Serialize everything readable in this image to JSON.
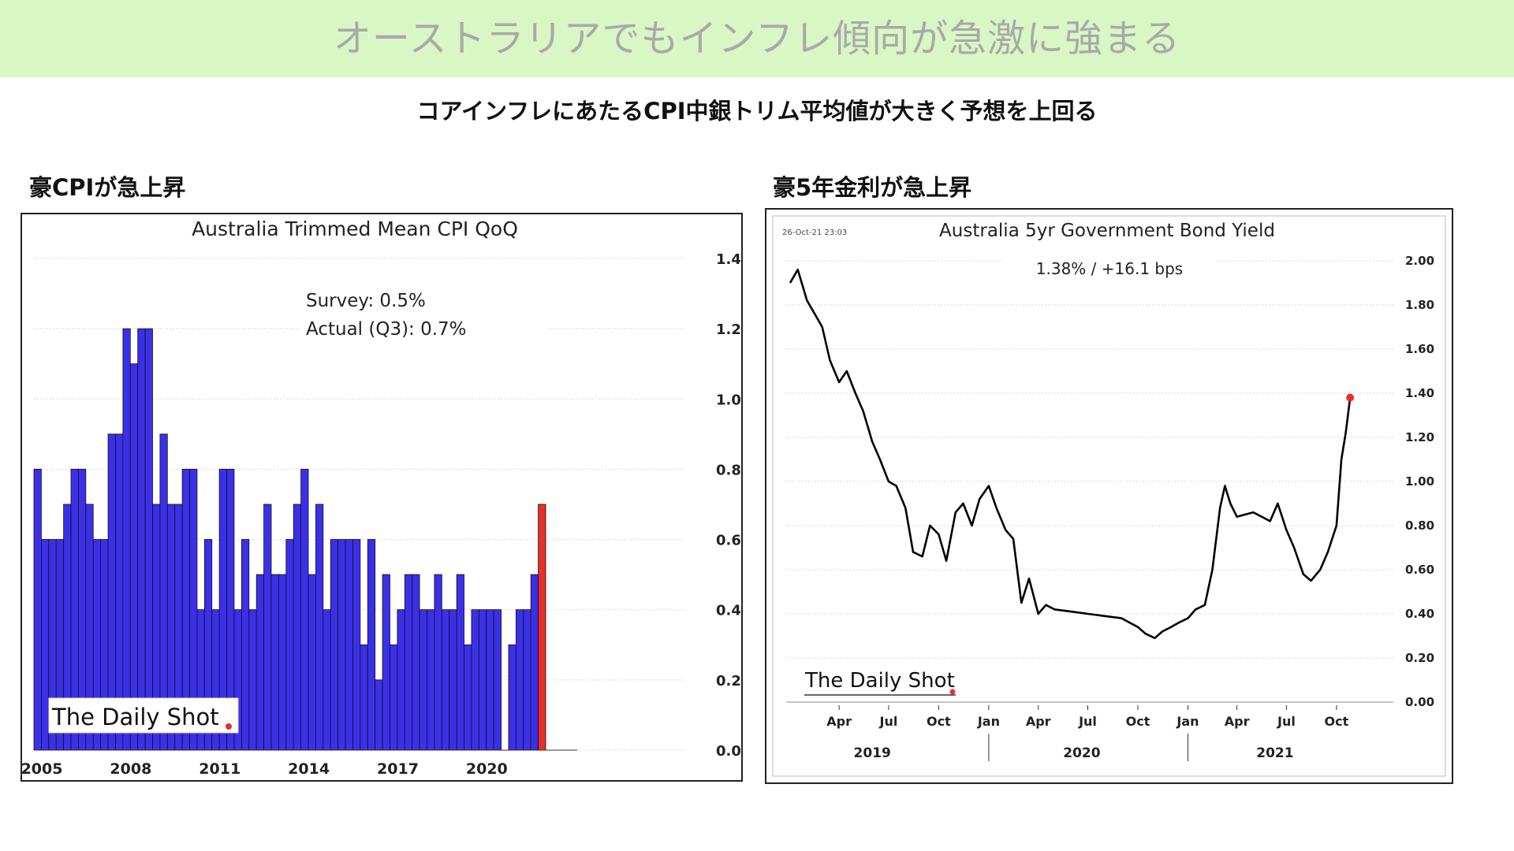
{
  "header": {
    "banner_title": "オーストラリアでもインフレ傾向が急激に強まる",
    "subtitle": "コアインフレにあたるCPI中銀トリム平均値が大きく予想を上回る"
  },
  "left_panel": {
    "label": "豪CPIが急上昇"
  },
  "right_panel": {
    "label": "豪5年金利が急上昇"
  },
  "colors": {
    "banner_bg": "#d9f7c4",
    "bar_fill": "#3b30e8",
    "bar_highlight": "#e8302a",
    "line": "#000000",
    "dot": "#e8302a"
  },
  "chart_data": [
    {
      "type": "bar",
      "title": "Australia Trimmed Mean CPI QoQ",
      "annotations": [
        "Survey:  0.5%",
        "Actual (Q3):  0.7%"
      ],
      "watermark": "The Daily Shot",
      "ylim": [
        0,
        1.4
      ],
      "y_ticks": [
        "1.4",
        "1.2",
        "1.0",
        "0.8",
        "0.6",
        "0.4",
        "0.2",
        "0.0"
      ],
      "x_ticks": [
        "2005",
        "2008",
        "2011",
        "2014",
        "2017",
        "2020"
      ],
      "grid": true,
      "values": [
        0.8,
        0.6,
        0.6,
        0.6,
        0.7,
        0.8,
        0.8,
        0.7,
        0.6,
        0.6,
        0.9,
        0.9,
        1.2,
        1.1,
        1.2,
        1.2,
        0.7,
        0.9,
        0.7,
        0.7,
        0.8,
        0.8,
        0.4,
        0.6,
        0.4,
        0.8,
        0.8,
        0.4,
        0.6,
        0.4,
        0.5,
        0.7,
        0.5,
        0.5,
        0.6,
        0.7,
        0.8,
        0.5,
        0.7,
        0.4,
        0.6,
        0.6,
        0.6,
        0.6,
        0.3,
        0.6,
        0.2,
        0.5,
        0.3,
        0.4,
        0.5,
        0.5,
        0.4,
        0.4,
        0.5,
        0.4,
        0.4,
        0.5,
        0.3,
        0.4,
        0.4,
        0.4,
        0.4,
        0.0,
        0.3,
        0.4,
        0.4,
        0.5,
        0.7
      ],
      "highlight_last": true
    },
    {
      "type": "line",
      "title": "Australia 5yr Government Bond Yield",
      "timestamp": "26-Oct-21 23:03",
      "annotation": "1.38%  /  +16.1 bps",
      "watermark": "The Daily Shot",
      "ylim": [
        0,
        2.0
      ],
      "y_ticks": [
        "2.00",
        "1.80",
        "1.60",
        "1.40",
        "1.20",
        "1.00",
        "0.80",
        "0.60",
        "0.40",
        "0.20",
        "0.00"
      ],
      "x_ticks": [
        "Apr",
        "Jul",
        "Oct",
        "Jan",
        "Apr",
        "Jul",
        "Oct",
        "Jan",
        "Apr",
        "Jul",
        "Oct"
      ],
      "x_years": [
        "2019",
        "2020",
        "2021"
      ],
      "grid": true,
      "series_points": [
        [
          "2019-01-01",
          1.9
        ],
        [
          "2019-01-15",
          1.96
        ],
        [
          "2019-02-01",
          1.82
        ],
        [
          "2019-02-15",
          1.76
        ],
        [
          "2019-03-01",
          1.7
        ],
        [
          "2019-03-15",
          1.55
        ],
        [
          "2019-04-01",
          1.45
        ],
        [
          "2019-04-15",
          1.5
        ],
        [
          "2019-05-01",
          1.4
        ],
        [
          "2019-05-15",
          1.32
        ],
        [
          "2019-06-01",
          1.18
        ],
        [
          "2019-06-15",
          1.1
        ],
        [
          "2019-07-01",
          1.0
        ],
        [
          "2019-07-15",
          0.98
        ],
        [
          "2019-08-01",
          0.88
        ],
        [
          "2019-08-15",
          0.68
        ],
        [
          "2019-09-01",
          0.66
        ],
        [
          "2019-09-15",
          0.8
        ],
        [
          "2019-10-01",
          0.76
        ],
        [
          "2019-10-15",
          0.64
        ],
        [
          "2019-11-01",
          0.86
        ],
        [
          "2019-11-15",
          0.9
        ],
        [
          "2019-12-01",
          0.8
        ],
        [
          "2019-12-15",
          0.92
        ],
        [
          "2020-01-01",
          0.98
        ],
        [
          "2020-01-15",
          0.88
        ],
        [
          "2020-02-01",
          0.78
        ],
        [
          "2020-02-15",
          0.74
        ],
        [
          "2020-03-01",
          0.45
        ],
        [
          "2020-03-15",
          0.56
        ],
        [
          "2020-04-01",
          0.4
        ],
        [
          "2020-04-15",
          0.44
        ],
        [
          "2020-05-01",
          0.42
        ],
        [
          "2020-06-01",
          0.41
        ],
        [
          "2020-07-01",
          0.4
        ],
        [
          "2020-08-01",
          0.39
        ],
        [
          "2020-09-01",
          0.38
        ],
        [
          "2020-10-01",
          0.34
        ],
        [
          "2020-10-15",
          0.31
        ],
        [
          "2020-11-01",
          0.29
        ],
        [
          "2020-11-15",
          0.32
        ],
        [
          "2020-12-01",
          0.34
        ],
        [
          "2020-12-15",
          0.36
        ],
        [
          "2021-01-01",
          0.38
        ],
        [
          "2021-01-15",
          0.42
        ],
        [
          "2021-02-01",
          0.44
        ],
        [
          "2021-02-15",
          0.6
        ],
        [
          "2021-03-01",
          0.88
        ],
        [
          "2021-03-10",
          0.98
        ],
        [
          "2021-03-20",
          0.9
        ],
        [
          "2021-04-01",
          0.84
        ],
        [
          "2021-05-01",
          0.86
        ],
        [
          "2021-06-01",
          0.82
        ],
        [
          "2021-06-15",
          0.9
        ],
        [
          "2021-07-01",
          0.78
        ],
        [
          "2021-07-15",
          0.7
        ],
        [
          "2021-08-01",
          0.58
        ],
        [
          "2021-08-15",
          0.55
        ],
        [
          "2021-09-01",
          0.6
        ],
        [
          "2021-09-15",
          0.68
        ],
        [
          "2021-10-01",
          0.8
        ],
        [
          "2021-10-10",
          1.1
        ],
        [
          "2021-10-18",
          1.22
        ],
        [
          "2021-10-26",
          1.38
        ]
      ]
    }
  ]
}
